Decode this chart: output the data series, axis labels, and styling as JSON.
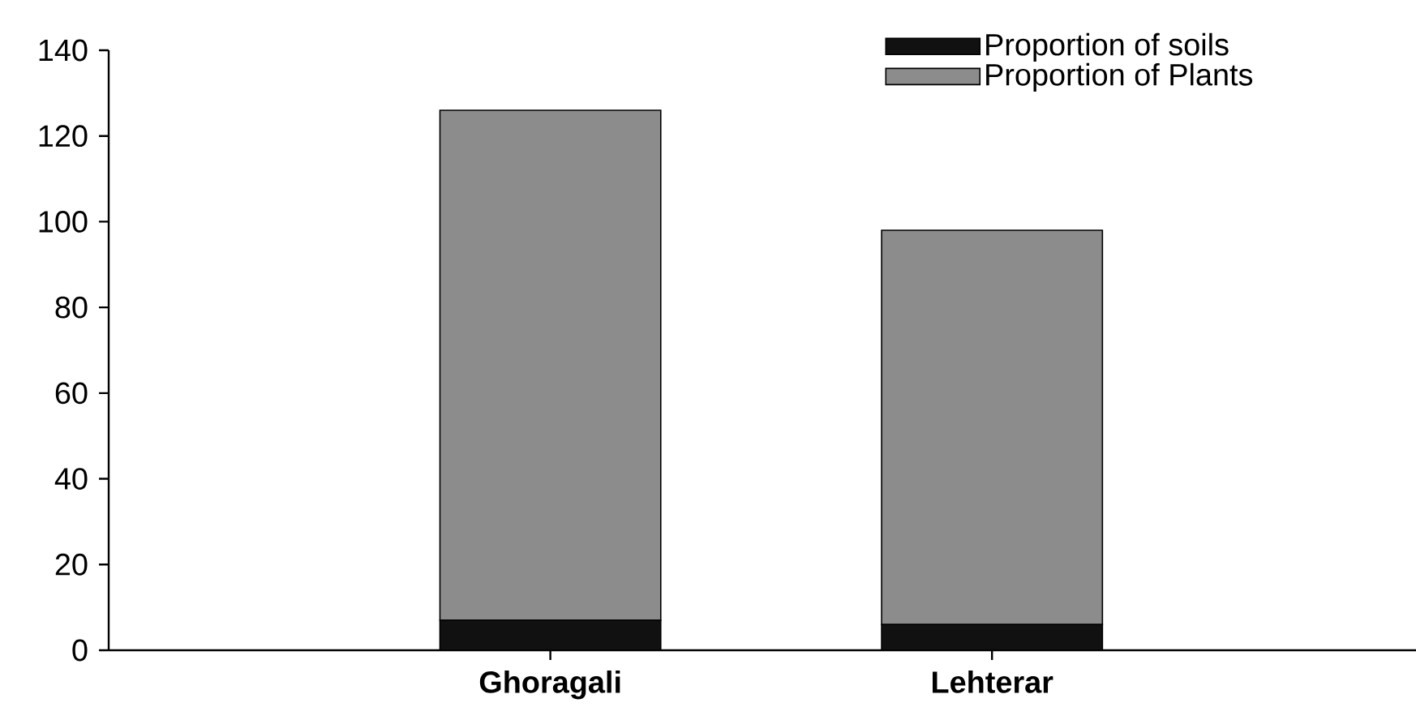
{
  "chart_data": {
    "type": "bar",
    "stacked": true,
    "categories": [
      "Ghoragali",
      "Lehterar"
    ],
    "series": [
      {
        "name": "Proportion of soils",
        "color": "#111111",
        "values": [
          7,
          6
        ]
      },
      {
        "name": "Proportion of Plants",
        "color": "#8c8c8c",
        "values": [
          119,
          92
        ]
      }
    ],
    "ylim": [
      0,
      140
    ],
    "yticks": [
      0,
      20,
      40,
      60,
      80,
      100,
      120,
      140
    ],
    "legend": "top right",
    "grid": false
  }
}
